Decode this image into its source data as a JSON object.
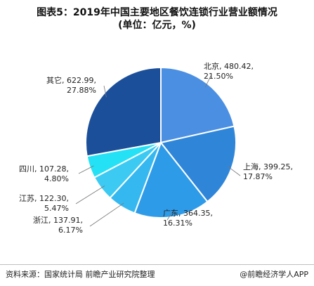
{
  "title_line1": "图表5：2019年中国主要地区餐饮连锁行业营业额情况",
  "title_line2": "(单位：亿元，%)",
  "footer": {
    "source": "资料来源：国家统计局 前瞻产业研究院整理",
    "brand": "@前瞻经济学人APP"
  },
  "watermark_text": "前瞻产业研究院",
  "chart_data": {
    "type": "pie",
    "start": "top, clockwise",
    "categories": [
      "北京",
      "上海",
      "广东",
      "浙江",
      "江苏",
      "四川",
      "其它"
    ],
    "values": [
      480.42,
      399.25,
      364.35,
      137.91,
      122.3,
      107.28,
      622.99
    ],
    "value_labels": [
      "480.42",
      "399.25",
      "364.35",
      "137.91",
      "122.30",
      "107.28",
      "622.99"
    ],
    "percents": [
      "21.50%",
      "17.87%",
      "16.31%",
      "6.17%",
      "5.47%",
      "4.80%",
      "27.88%"
    ],
    "colors": [
      "#4b8fe3",
      "#2f86d9",
      "#2e9be8",
      "#35b8f0",
      "#3ccaf3",
      "#24e1f5",
      "#1c4f9a"
    ]
  }
}
